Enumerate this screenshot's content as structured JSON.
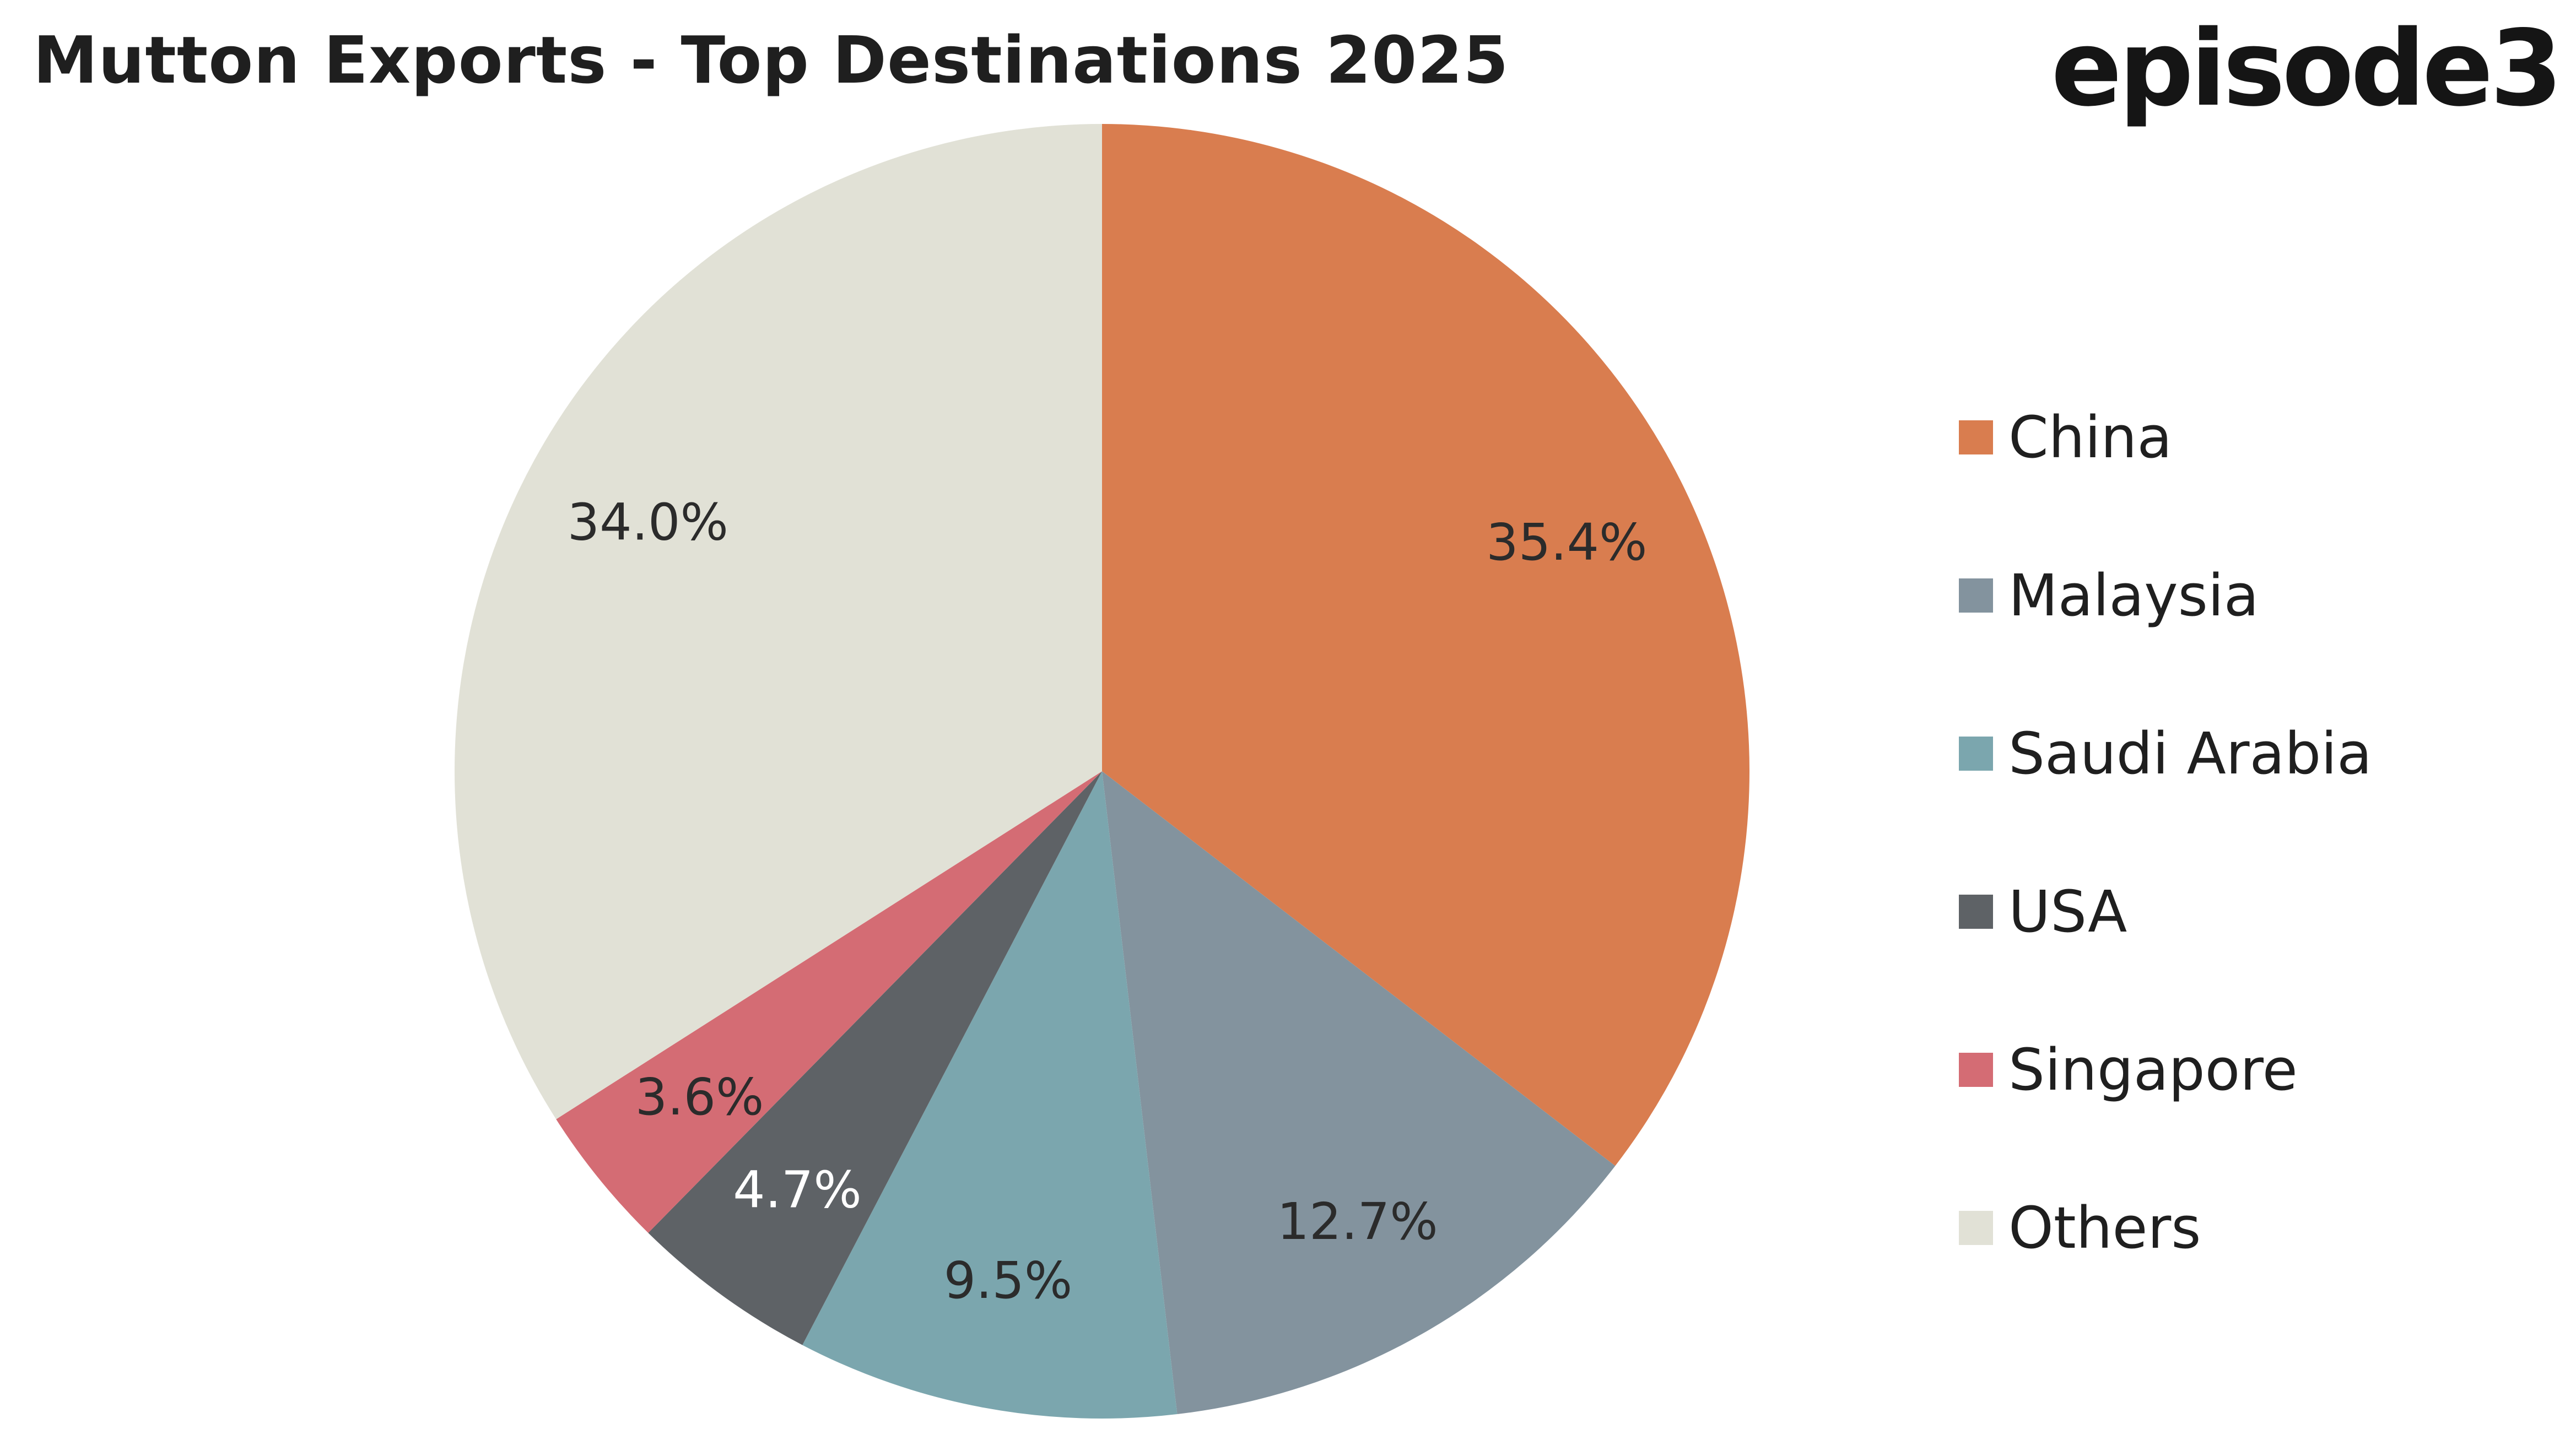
{
  "logo": {
    "text": "episode3"
  },
  "chart_data": {
    "type": "pie",
    "title": "Mutton Exports - Top Destinations 2025",
    "start_angle": "12 o'clock",
    "direction": "clockwise",
    "slices": [
      {
        "label": "China",
        "value": 35.4,
        "value_label": "35.4%",
        "color": "#D97D4F",
        "label_color": "#2b2b2b"
      },
      {
        "label": "Malaysia",
        "value": 12.7,
        "value_label": "12.7%",
        "color": "#83939E",
        "label_color": "#2b2b2b"
      },
      {
        "label": "Saudi Arabia",
        "value": 9.5,
        "value_label": "9.5%",
        "color": "#7BA6AE",
        "label_color": "#2b2b2b"
      },
      {
        "label": "USA",
        "value": 4.7,
        "value_label": "4.7%",
        "color": "#5E6266",
        "label_color": "#ffffff"
      },
      {
        "label": "Singapore",
        "value": 3.6,
        "value_label": "3.6%",
        "color": "#D46C74",
        "label_color": "#2b2b2b"
      },
      {
        "label": "Others",
        "value": 34.0,
        "value_label": "34.0%",
        "color": "#E1E1D6",
        "label_color": "#2b2b2b"
      }
    ],
    "legend": {
      "position": "right",
      "items": [
        {
          "label": "China",
          "color": "#D97D4F"
        },
        {
          "label": "Malaysia",
          "color": "#83939E"
        },
        {
          "label": "Saudi Arabia",
          "color": "#7BA6AE"
        },
        {
          "label": "USA",
          "color": "#5E6266"
        },
        {
          "label": "Singapore",
          "color": "#D46C74"
        },
        {
          "label": "Others",
          "color": "#E1E1D6"
        }
      ]
    }
  }
}
